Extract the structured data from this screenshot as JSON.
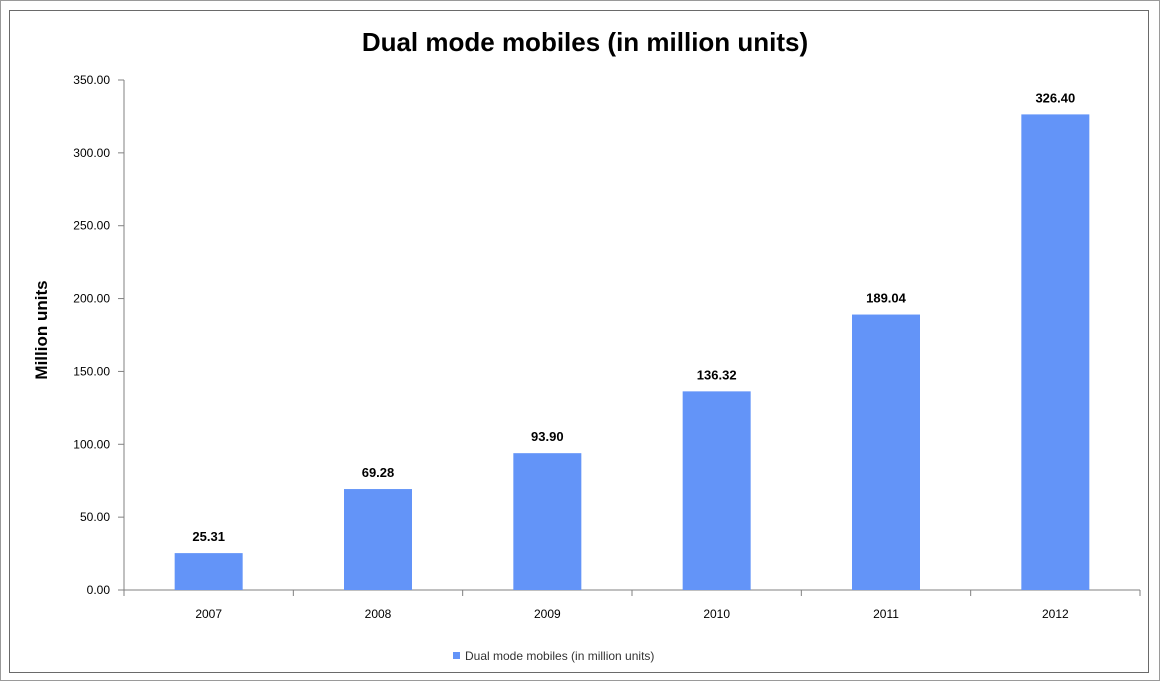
{
  "chart_data": {
    "type": "bar",
    "title": "Dual mode mobiles (in million units)",
    "xlabel": "",
    "ylabel": "Million units",
    "categories": [
      "2007",
      "2008",
      "2009",
      "2010",
      "2011",
      "2012"
    ],
    "series": [
      {
        "name": "Dual mode mobiles (in million units)",
        "values": [
          25.31,
          69.28,
          93.9,
          136.32,
          189.04,
          326.4
        ],
        "data_labels": [
          "25.31",
          "69.28",
          "93.90",
          "136.32",
          "189.04",
          "326.40"
        ],
        "color": "#6394f8"
      }
    ],
    "ylim": [
      0,
      350
    ],
    "yticks": [
      0,
      50,
      100,
      150,
      200,
      250,
      300,
      350
    ],
    "ytick_labels": [
      "0.00",
      "50.00",
      "100.00",
      "150.00",
      "200.00",
      "250.00",
      "300.00",
      "350.00"
    ],
    "grid": false,
    "legend": {
      "position": "bottom",
      "label": "Dual mode mobiles (in million units)"
    },
    "colors": {
      "bar": "#6394f8",
      "axis": "#808080",
      "text": "#000000",
      "legend_text": "#333333"
    }
  }
}
